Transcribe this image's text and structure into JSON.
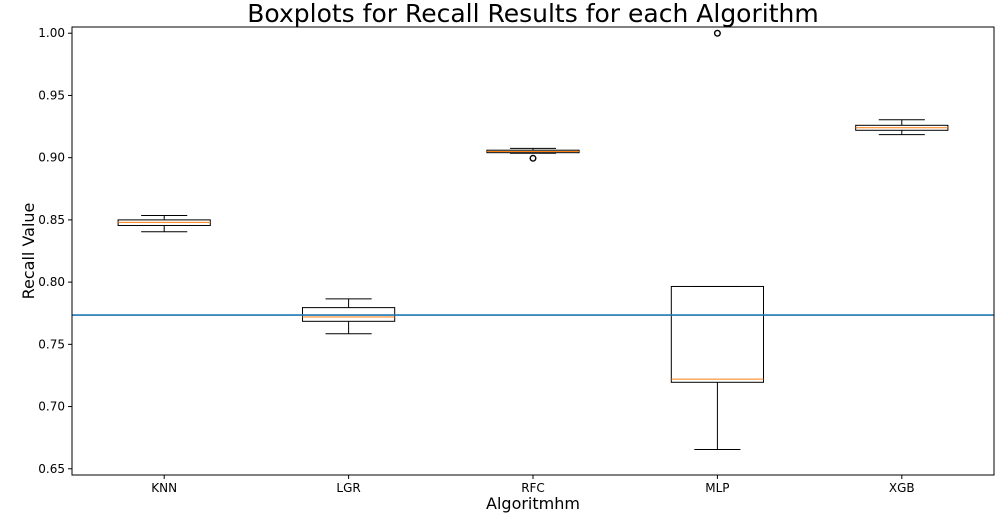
{
  "chart_data": {
    "type": "boxplot",
    "title": "Boxplots for Recall Results for each Algorithm",
    "xlabel": "Algoritmhm",
    "ylabel": "Recall Value",
    "categories": [
      "KNN",
      "LGR",
      "RFC",
      "MLP",
      "XGB"
    ],
    "ylim": [
      0.645,
      1.005
    ],
    "yticks": [
      0.65,
      0.7,
      0.75,
      0.8,
      0.85,
      0.9,
      0.95,
      1.0
    ],
    "ytick_labels": [
      "0.65",
      "0.70",
      "0.75",
      "0.80",
      "0.85",
      "0.90",
      "0.95",
      "1.00"
    ],
    "grid": false,
    "boxes": [
      {
        "category": "KNN",
        "whisker_low": 0.8405,
        "q1": 0.8455,
        "median": 0.848,
        "q3": 0.85,
        "whisker_high": 0.8535,
        "outliers": []
      },
      {
        "category": "LGR",
        "whisker_low": 0.7585,
        "q1": 0.7685,
        "median": 0.772,
        "q3": 0.7795,
        "whisker_high": 0.7865,
        "outliers": []
      },
      {
        "category": "RFC",
        "whisker_low": 0.9035,
        "q1": 0.904,
        "median": 0.905,
        "q3": 0.906,
        "whisker_high": 0.9075,
        "outliers": [
          0.8995
        ]
      },
      {
        "category": "MLP",
        "whisker_low": 0.6655,
        "q1": 0.7195,
        "median": 0.722,
        "q3": 0.7965,
        "whisker_high": 0.7965,
        "outliers": [
          1.0
        ]
      },
      {
        "category": "XGB",
        "whisker_low": 0.9185,
        "q1": 0.922,
        "median": 0.924,
        "q3": 0.926,
        "whisker_high": 0.9305,
        "outliers": []
      }
    ],
    "reference_line": {
      "y": 0.7735
    },
    "colors": {
      "box": "#000000",
      "median": "#ff7f0e",
      "reference_line": "#1f77b4"
    }
  }
}
